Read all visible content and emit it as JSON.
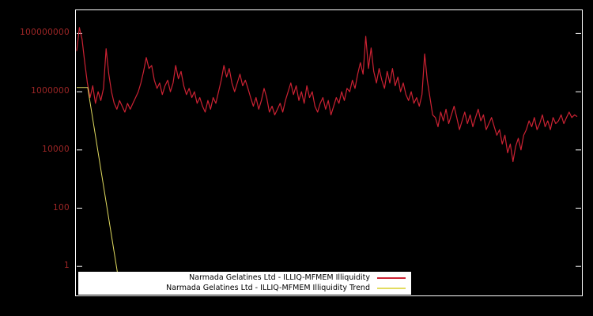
{
  "chart_data": {
    "type": "line",
    "title": "",
    "xlabel": "",
    "ylabel": "",
    "background": "#000000",
    "axis_color": "#ffffff",
    "tick_label_color": "#9e2626",
    "y_scale": "log",
    "ylim": [
      0.1,
      630000000.0
    ],
    "y_ticks": [
      1,
      100,
      10000,
      1000000,
      100000000
    ],
    "y_tick_labels": [
      "1",
      "100",
      "10000",
      "1000000",
      "100000000"
    ],
    "x_tick_labels": [],
    "grid": false,
    "legend_position": "bottom-center",
    "series": [
      {
        "name": "Narmada Gelatines Ltd - ILLIQ-MFMEM Illiquidity",
        "color": "#cc2233",
        "values": [
          25000000.0,
          160000000.0,
          63000000.0,
          10000000.0,
          2000000.0,
          630000.0,
          1600000.0,
          400000.0,
          1000000.0,
          500000.0,
          1300000.0,
          30000000.0,
          4000000.0,
          1000000.0,
          400000.0,
          250000.0,
          500000.0,
          320000.0,
          200000.0,
          400000.0,
          250000.0,
          400000.0,
          630000.0,
          1000000.0,
          2000000.0,
          5000000.0,
          15000000.0,
          6300000.0,
          8000000.0,
          2500000.0,
          1300000.0,
          2000000.0,
          800000.0,
          1600000.0,
          2500000.0,
          1000000.0,
          2000000.0,
          8000000.0,
          2800000.0,
          5000000.0,
          1600000.0,
          800000.0,
          1300000.0,
          630000.0,
          1000000.0,
          400000.0,
          630000.0,
          320000.0,
          200000.0,
          500000.0,
          250000.0,
          630000.0,
          400000.0,
          1000000.0,
          2500000.0,
          8000000.0,
          3200000.0,
          6300000.0,
          2000000.0,
          1000000.0,
          2000000.0,
          4000000.0,
          1600000.0,
          2500000.0,
          1300000.0,
          630000.0,
          320000.0,
          630000.0,
          250000.0,
          500000.0,
          1300000.0,
          630000.0,
          200000.0,
          320000.0,
          160000.0,
          250000.0,
          400000.0,
          200000.0,
          500000.0,
          1000000.0,
          2000000.0,
          800000.0,
          1600000.0,
          500000.0,
          1000000.0,
          400000.0,
          1600000.0,
          630000.0,
          1000000.0,
          320000.0,
          200000.0,
          400000.0,
          630000.0,
          250000.0,
          500000.0,
          160000.0,
          320000.0,
          630000.0,
          400000.0,
          1000000.0,
          500000.0,
          1300000.0,
          1000000.0,
          2500000.0,
          1300000.0,
          4000000.0,
          10000000.0,
          4000000.0,
          80000000.0,
          6300000.0,
          32000000.0,
          5000000.0,
          2000000.0,
          6300000.0,
          2500000.0,
          1300000.0,
          5000000.0,
          2000000.0,
          6300000.0,
          1600000.0,
          3200000.0,
          1000000.0,
          2000000.0,
          800000.0,
          500000.0,
          1000000.0,
          400000.0,
          630000.0,
          320000.0,
          800000.0,
          20000000.0,
          2500000.0,
          630000.0,
          160000.0,
          130000.0,
          63000.0,
          200000.0,
          100000.0,
          250000.0,
          80000.0,
          160000.0,
          320000.0,
          130000.0,
          50000.0,
          100000.0,
          200000.0,
          80000.0,
          160000.0,
          63000.0,
          130000.0,
          250000.0,
          100000.0,
          160000.0,
          50000.0,
          80000.0,
          130000.0,
          63000.0,
          32000.0,
          50000.0,
          16000.0,
          32000.0,
          8000.0,
          16000.0,
          4000.0,
          13000.0,
          25000.0,
          10000.0,
          32000.0,
          50000.0,
          100000.0,
          63000.0,
          130000.0,
          50000.0,
          80000.0,
          160000.0,
          63000.0,
          100000.0,
          50000.0,
          130000.0,
          80000.0,
          100000.0,
          160000.0,
          80000.0,
          130000.0,
          200000.0,
          130000.0,
          160000.0,
          140000.0
        ]
      },
      {
        "name": "Narmada Gelatines Ltd - ILLIQ-MFMEM Illiquidity Trend",
        "color": "#e2dc60",
        "x_frac": [
          0.0,
          0.022,
          0.088
        ],
        "values": [
          1400000.0,
          1400000.0,
          0.12
        ]
      }
    ]
  }
}
